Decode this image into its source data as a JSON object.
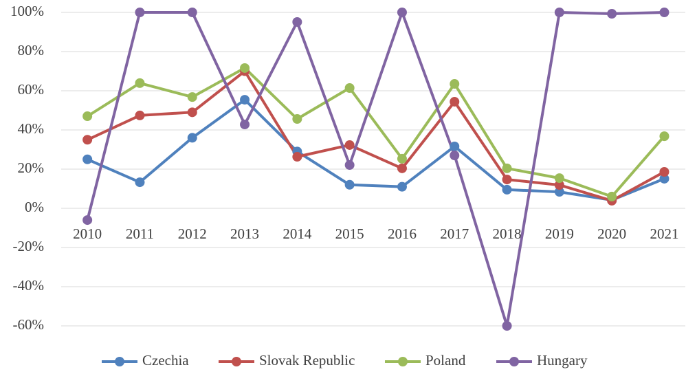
{
  "chart_data": {
    "type": "line",
    "categories": [
      "2010",
      "2011",
      "2012",
      "2013",
      "2014",
      "2015",
      "2016",
      "2017",
      "2018",
      "2019",
      "2020",
      "2021"
    ],
    "series": [
      {
        "name": "Czechia",
        "color": "#4f81bd",
        "values": [
          25,
          13.3,
          36,
          55.4,
          29,
          12,
          11,
          31.6,
          9.5,
          8.4,
          4.2,
          15.1
        ]
      },
      {
        "name": "Slovak Republic",
        "color": "#c0504d",
        "values": [
          35,
          47.4,
          49,
          70,
          26.3,
          32.3,
          20.4,
          54.4,
          14.7,
          11.9,
          3.9,
          18.6
        ]
      },
      {
        "name": "Poland",
        "color": "#9bbb59",
        "values": [
          47,
          63.9,
          56.8,
          71.6,
          45.6,
          61.4,
          25.3,
          63.5,
          20.4,
          15.4,
          6,
          36.8
        ]
      },
      {
        "name": "Hungary",
        "color": "#8064a2",
        "values": [
          -6,
          100,
          100,
          42.8,
          95.1,
          22.1,
          100,
          27,
          -60,
          100,
          99.3,
          100
        ]
      }
    ],
    "ylim": [
      -60,
      100
    ],
    "yticks": [
      {
        "value": -60,
        "label": "-60%"
      },
      {
        "value": -40,
        "label": "-40%"
      },
      {
        "value": -20,
        "label": "-20%"
      },
      {
        "value": 0,
        "label": "0%"
      },
      {
        "value": 20,
        "label": "20%"
      },
      {
        "value": 40,
        "label": "40%"
      },
      {
        "value": 60,
        "label": "60%"
      },
      {
        "value": 80,
        "label": "80%"
      },
      {
        "value": 100,
        "label": "100%"
      }
    ],
    "grid": true,
    "legend": "bottom"
  }
}
